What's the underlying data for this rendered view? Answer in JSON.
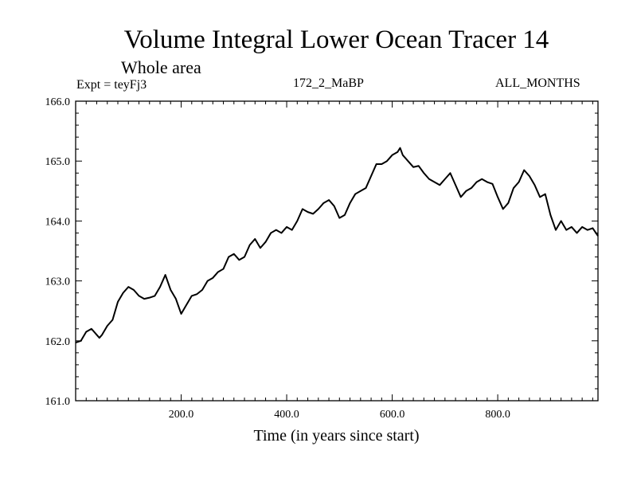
{
  "header": {
    "title": "Volume Integral Lower Ocean Tracer 14",
    "subtitle": "Whole area",
    "experiment": "Expt = teyFj3",
    "run_id": "172_2_MaBP",
    "period": "ALL_MONTHS"
  },
  "chart_data": {
    "type": "line",
    "title": "Volume Integral Lower Ocean Tracer 14",
    "subtitle": "Whole area",
    "xlabel": "Time (in years since start)",
    "ylabel": "",
    "xlim": [
      0,
      990
    ],
    "ylim": [
      161.0,
      166.0
    ],
    "x_ticks": [
      200,
      400,
      600,
      800
    ],
    "x_tick_labels": [
      "200.0",
      "400.0",
      "600.0",
      "800.0"
    ],
    "y_ticks": [
      161.0,
      162.0,
      163.0,
      164.0,
      165.0,
      166.0
    ],
    "y_tick_labels": [
      "161.0",
      "162.0",
      "163.0",
      "164.0",
      "165.0",
      "166.0"
    ],
    "grid": false,
    "series": [
      {
        "name": "Volume Integral Lower Ocean Tracer 14",
        "x": [
          0,
          10,
          20,
          30,
          40,
          45,
          50,
          60,
          70,
          80,
          90,
          100,
          110,
          120,
          130,
          140,
          150,
          160,
          170,
          180,
          190,
          200,
          210,
          220,
          230,
          240,
          250,
          260,
          270,
          280,
          290,
          300,
          310,
          320,
          330,
          340,
          350,
          360,
          370,
          380,
          390,
          400,
          410,
          420,
          430,
          440,
          450,
          460,
          470,
          480,
          490,
          500,
          510,
          520,
          530,
          540,
          550,
          560,
          570,
          580,
          590,
          600,
          610,
          615,
          620,
          630,
          640,
          650,
          660,
          670,
          680,
          690,
          700,
          710,
          720,
          730,
          740,
          750,
          760,
          770,
          780,
          790,
          800,
          810,
          820,
          830,
          840,
          850,
          860,
          870,
          880,
          890,
          900,
          910,
          920,
          930,
          940,
          950,
          960,
          970,
          980,
          990
        ],
        "values": [
          161.97,
          162.0,
          162.15,
          162.2,
          162.1,
          162.05,
          162.1,
          162.25,
          162.35,
          162.65,
          162.8,
          162.9,
          162.85,
          162.75,
          162.7,
          162.72,
          162.75,
          162.9,
          163.1,
          162.85,
          162.7,
          162.45,
          162.6,
          162.75,
          162.78,
          162.85,
          163.0,
          163.05,
          163.15,
          163.2,
          163.4,
          163.45,
          163.35,
          163.4,
          163.6,
          163.7,
          163.55,
          163.65,
          163.8,
          163.85,
          163.8,
          163.9,
          163.85,
          164.0,
          164.2,
          164.15,
          164.12,
          164.2,
          164.3,
          164.35,
          164.25,
          164.05,
          164.1,
          164.3,
          164.45,
          164.5,
          164.55,
          164.75,
          164.95,
          164.95,
          165.0,
          165.1,
          165.15,
          165.22,
          165.1,
          165.0,
          164.9,
          164.92,
          164.8,
          164.7,
          164.65,
          164.6,
          164.7,
          164.8,
          164.6,
          164.4,
          164.5,
          164.55,
          164.65,
          164.7,
          164.65,
          164.62,
          164.4,
          164.2,
          164.3,
          164.55,
          164.65,
          164.85,
          164.75,
          164.6,
          164.4,
          164.45,
          164.1,
          163.85,
          164.0,
          163.85,
          163.9,
          163.8,
          163.9,
          163.85,
          163.88,
          163.75
        ]
      }
    ]
  }
}
